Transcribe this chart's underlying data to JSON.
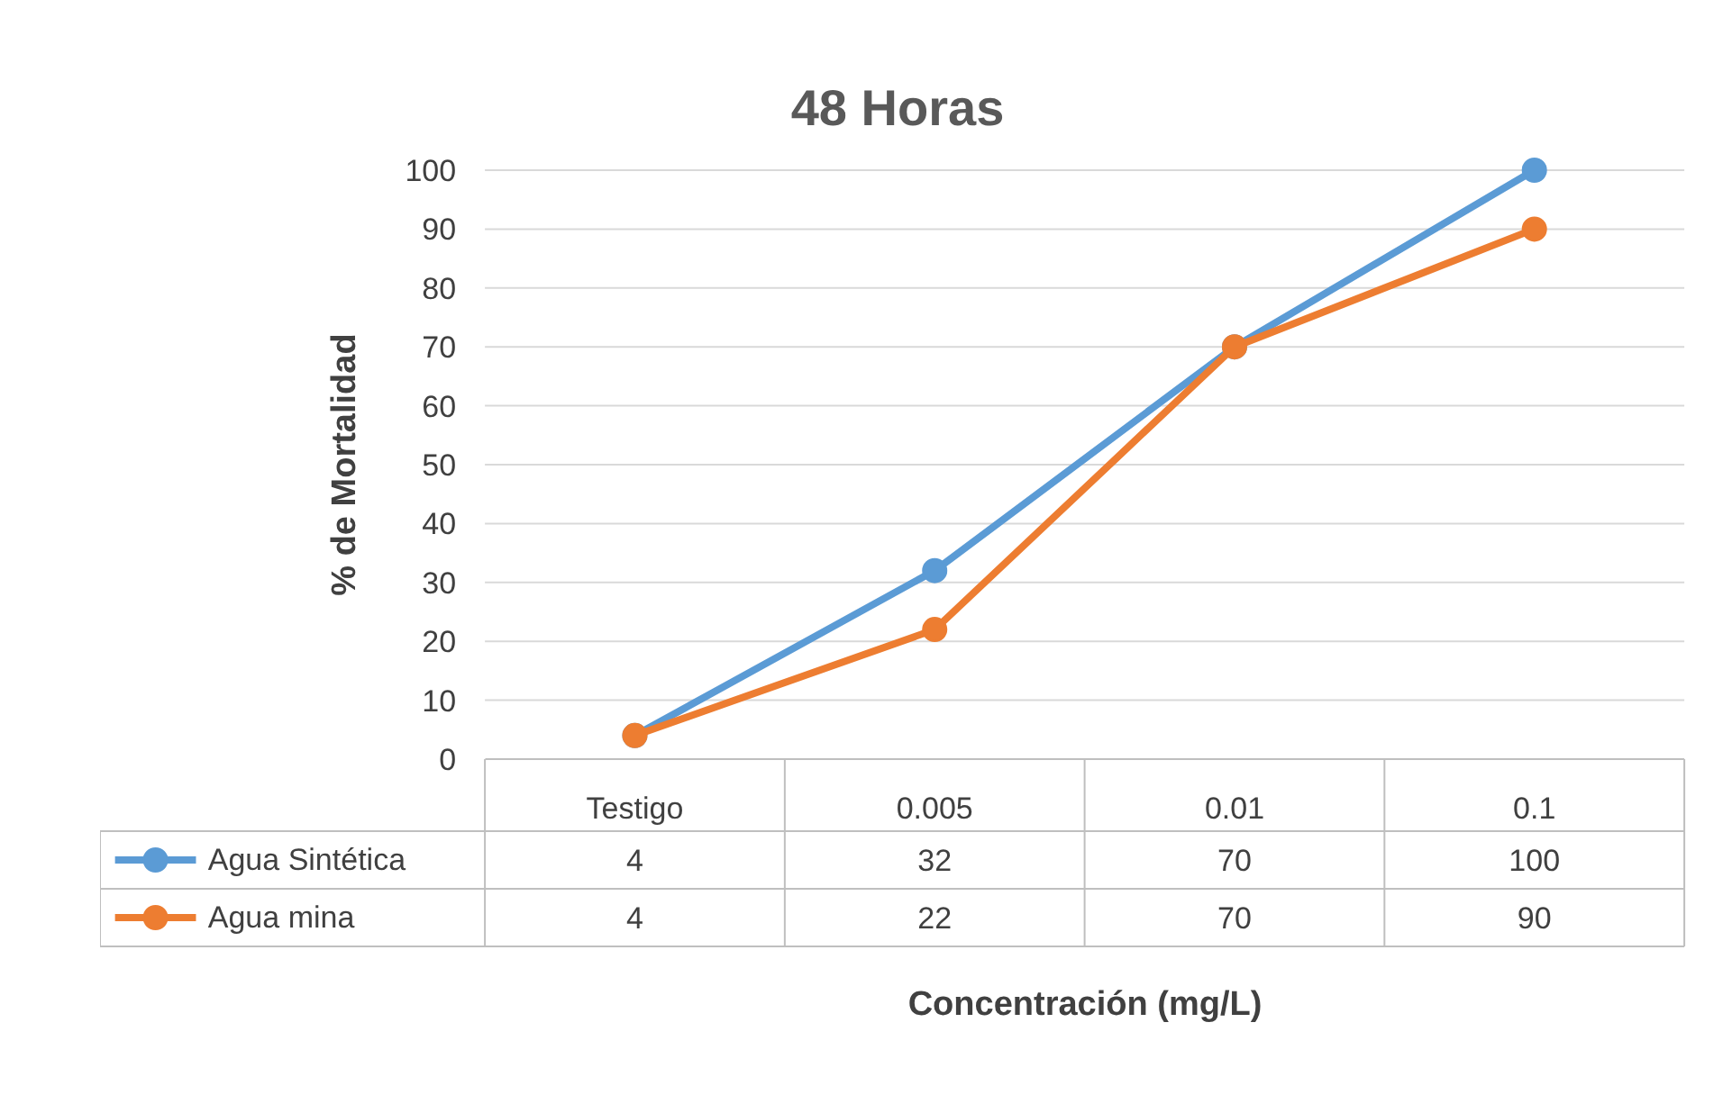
{
  "chart_data": {
    "type": "line",
    "title": "48 Horas",
    "xlabel": "Concentración (mg/L)",
    "ylabel": "% de Mortalidad",
    "categories": [
      "Testigo",
      "0.005",
      "0.01",
      "0.1"
    ],
    "series": [
      {
        "name": "Agua Sintética",
        "color": "#5b9bd5",
        "values": [
          4,
          32,
          70,
          100
        ]
      },
      {
        "name": "Agua mina",
        "color": "#ed7d31",
        "values": [
          4,
          22,
          70,
          90
        ]
      }
    ],
    "ylim": [
      0,
      100
    ],
    "yticks": [
      0,
      10,
      20,
      30,
      40,
      50,
      60,
      70,
      80,
      90,
      100
    ],
    "grid": "y",
    "marker": "circle",
    "line_style": "solid",
    "legend": "bottom",
    "data_labels": true
  }
}
